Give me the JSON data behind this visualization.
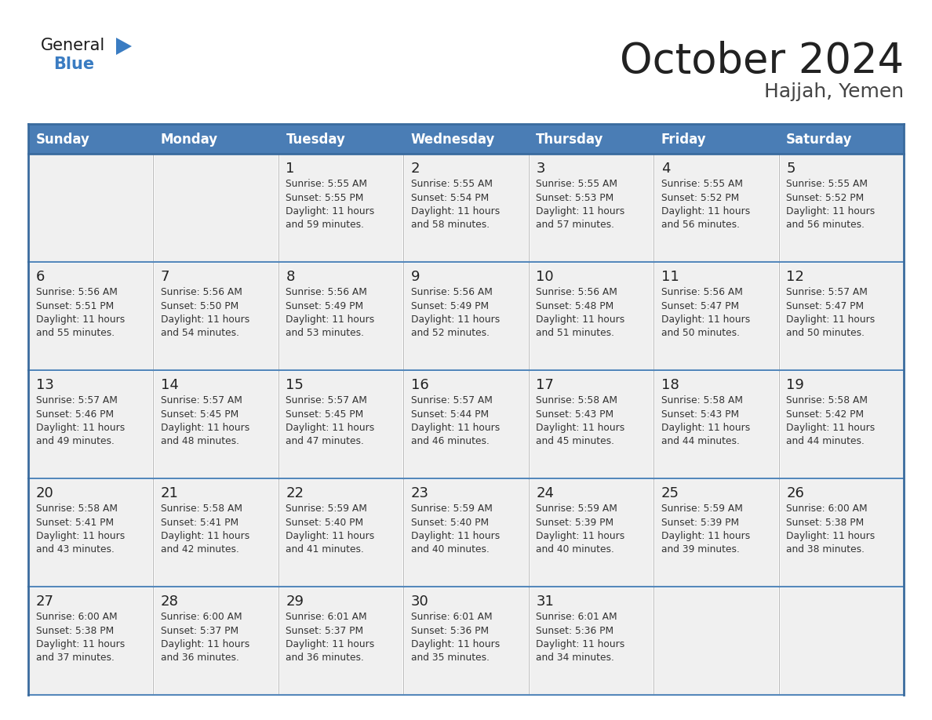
{
  "title": "October 2024",
  "subtitle": "Hajjah, Yemen",
  "header_color": "#4A7DB5",
  "header_text_color": "#FFFFFF",
  "cell_bg_color": "#F0F0F0",
  "border_color": "#3A6B9E",
  "line_color": "#5588BB",
  "day_names": [
    "Sunday",
    "Monday",
    "Tuesday",
    "Wednesday",
    "Thursday",
    "Friday",
    "Saturday"
  ],
  "title_color": "#222222",
  "subtitle_color": "#444444",
  "day_number_color": "#222222",
  "info_text_color": "#333333",
  "logo_black": "#1a1a1a",
  "logo_blue": "#3A7CC2",
  "weeks": [
    [
      {
        "day": "",
        "info": ""
      },
      {
        "day": "",
        "info": ""
      },
      {
        "day": "1",
        "info": "Sunrise: 5:55 AM\nSunset: 5:55 PM\nDaylight: 11 hours\nand 59 minutes."
      },
      {
        "day": "2",
        "info": "Sunrise: 5:55 AM\nSunset: 5:54 PM\nDaylight: 11 hours\nand 58 minutes."
      },
      {
        "day": "3",
        "info": "Sunrise: 5:55 AM\nSunset: 5:53 PM\nDaylight: 11 hours\nand 57 minutes."
      },
      {
        "day": "4",
        "info": "Sunrise: 5:55 AM\nSunset: 5:52 PM\nDaylight: 11 hours\nand 56 minutes."
      },
      {
        "day": "5",
        "info": "Sunrise: 5:55 AM\nSunset: 5:52 PM\nDaylight: 11 hours\nand 56 minutes."
      }
    ],
    [
      {
        "day": "6",
        "info": "Sunrise: 5:56 AM\nSunset: 5:51 PM\nDaylight: 11 hours\nand 55 minutes."
      },
      {
        "day": "7",
        "info": "Sunrise: 5:56 AM\nSunset: 5:50 PM\nDaylight: 11 hours\nand 54 minutes."
      },
      {
        "day": "8",
        "info": "Sunrise: 5:56 AM\nSunset: 5:49 PM\nDaylight: 11 hours\nand 53 minutes."
      },
      {
        "day": "9",
        "info": "Sunrise: 5:56 AM\nSunset: 5:49 PM\nDaylight: 11 hours\nand 52 minutes."
      },
      {
        "day": "10",
        "info": "Sunrise: 5:56 AM\nSunset: 5:48 PM\nDaylight: 11 hours\nand 51 minutes."
      },
      {
        "day": "11",
        "info": "Sunrise: 5:56 AM\nSunset: 5:47 PM\nDaylight: 11 hours\nand 50 minutes."
      },
      {
        "day": "12",
        "info": "Sunrise: 5:57 AM\nSunset: 5:47 PM\nDaylight: 11 hours\nand 50 minutes."
      }
    ],
    [
      {
        "day": "13",
        "info": "Sunrise: 5:57 AM\nSunset: 5:46 PM\nDaylight: 11 hours\nand 49 minutes."
      },
      {
        "day": "14",
        "info": "Sunrise: 5:57 AM\nSunset: 5:45 PM\nDaylight: 11 hours\nand 48 minutes."
      },
      {
        "day": "15",
        "info": "Sunrise: 5:57 AM\nSunset: 5:45 PM\nDaylight: 11 hours\nand 47 minutes."
      },
      {
        "day": "16",
        "info": "Sunrise: 5:57 AM\nSunset: 5:44 PM\nDaylight: 11 hours\nand 46 minutes."
      },
      {
        "day": "17",
        "info": "Sunrise: 5:58 AM\nSunset: 5:43 PM\nDaylight: 11 hours\nand 45 minutes."
      },
      {
        "day": "18",
        "info": "Sunrise: 5:58 AM\nSunset: 5:43 PM\nDaylight: 11 hours\nand 44 minutes."
      },
      {
        "day": "19",
        "info": "Sunrise: 5:58 AM\nSunset: 5:42 PM\nDaylight: 11 hours\nand 44 minutes."
      }
    ],
    [
      {
        "day": "20",
        "info": "Sunrise: 5:58 AM\nSunset: 5:41 PM\nDaylight: 11 hours\nand 43 minutes."
      },
      {
        "day": "21",
        "info": "Sunrise: 5:58 AM\nSunset: 5:41 PM\nDaylight: 11 hours\nand 42 minutes."
      },
      {
        "day": "22",
        "info": "Sunrise: 5:59 AM\nSunset: 5:40 PM\nDaylight: 11 hours\nand 41 minutes."
      },
      {
        "day": "23",
        "info": "Sunrise: 5:59 AM\nSunset: 5:40 PM\nDaylight: 11 hours\nand 40 minutes."
      },
      {
        "day": "24",
        "info": "Sunrise: 5:59 AM\nSunset: 5:39 PM\nDaylight: 11 hours\nand 40 minutes."
      },
      {
        "day": "25",
        "info": "Sunrise: 5:59 AM\nSunset: 5:39 PM\nDaylight: 11 hours\nand 39 minutes."
      },
      {
        "day": "26",
        "info": "Sunrise: 6:00 AM\nSunset: 5:38 PM\nDaylight: 11 hours\nand 38 minutes."
      }
    ],
    [
      {
        "day": "27",
        "info": "Sunrise: 6:00 AM\nSunset: 5:38 PM\nDaylight: 11 hours\nand 37 minutes."
      },
      {
        "day": "28",
        "info": "Sunrise: 6:00 AM\nSunset: 5:37 PM\nDaylight: 11 hours\nand 36 minutes."
      },
      {
        "day": "29",
        "info": "Sunrise: 6:01 AM\nSunset: 5:37 PM\nDaylight: 11 hours\nand 36 minutes."
      },
      {
        "day": "30",
        "info": "Sunrise: 6:01 AM\nSunset: 5:36 PM\nDaylight: 11 hours\nand 35 minutes."
      },
      {
        "day": "31",
        "info": "Sunrise: 6:01 AM\nSunset: 5:36 PM\nDaylight: 11 hours\nand 34 minutes."
      },
      {
        "day": "",
        "info": ""
      },
      {
        "day": "",
        "info": ""
      }
    ]
  ]
}
